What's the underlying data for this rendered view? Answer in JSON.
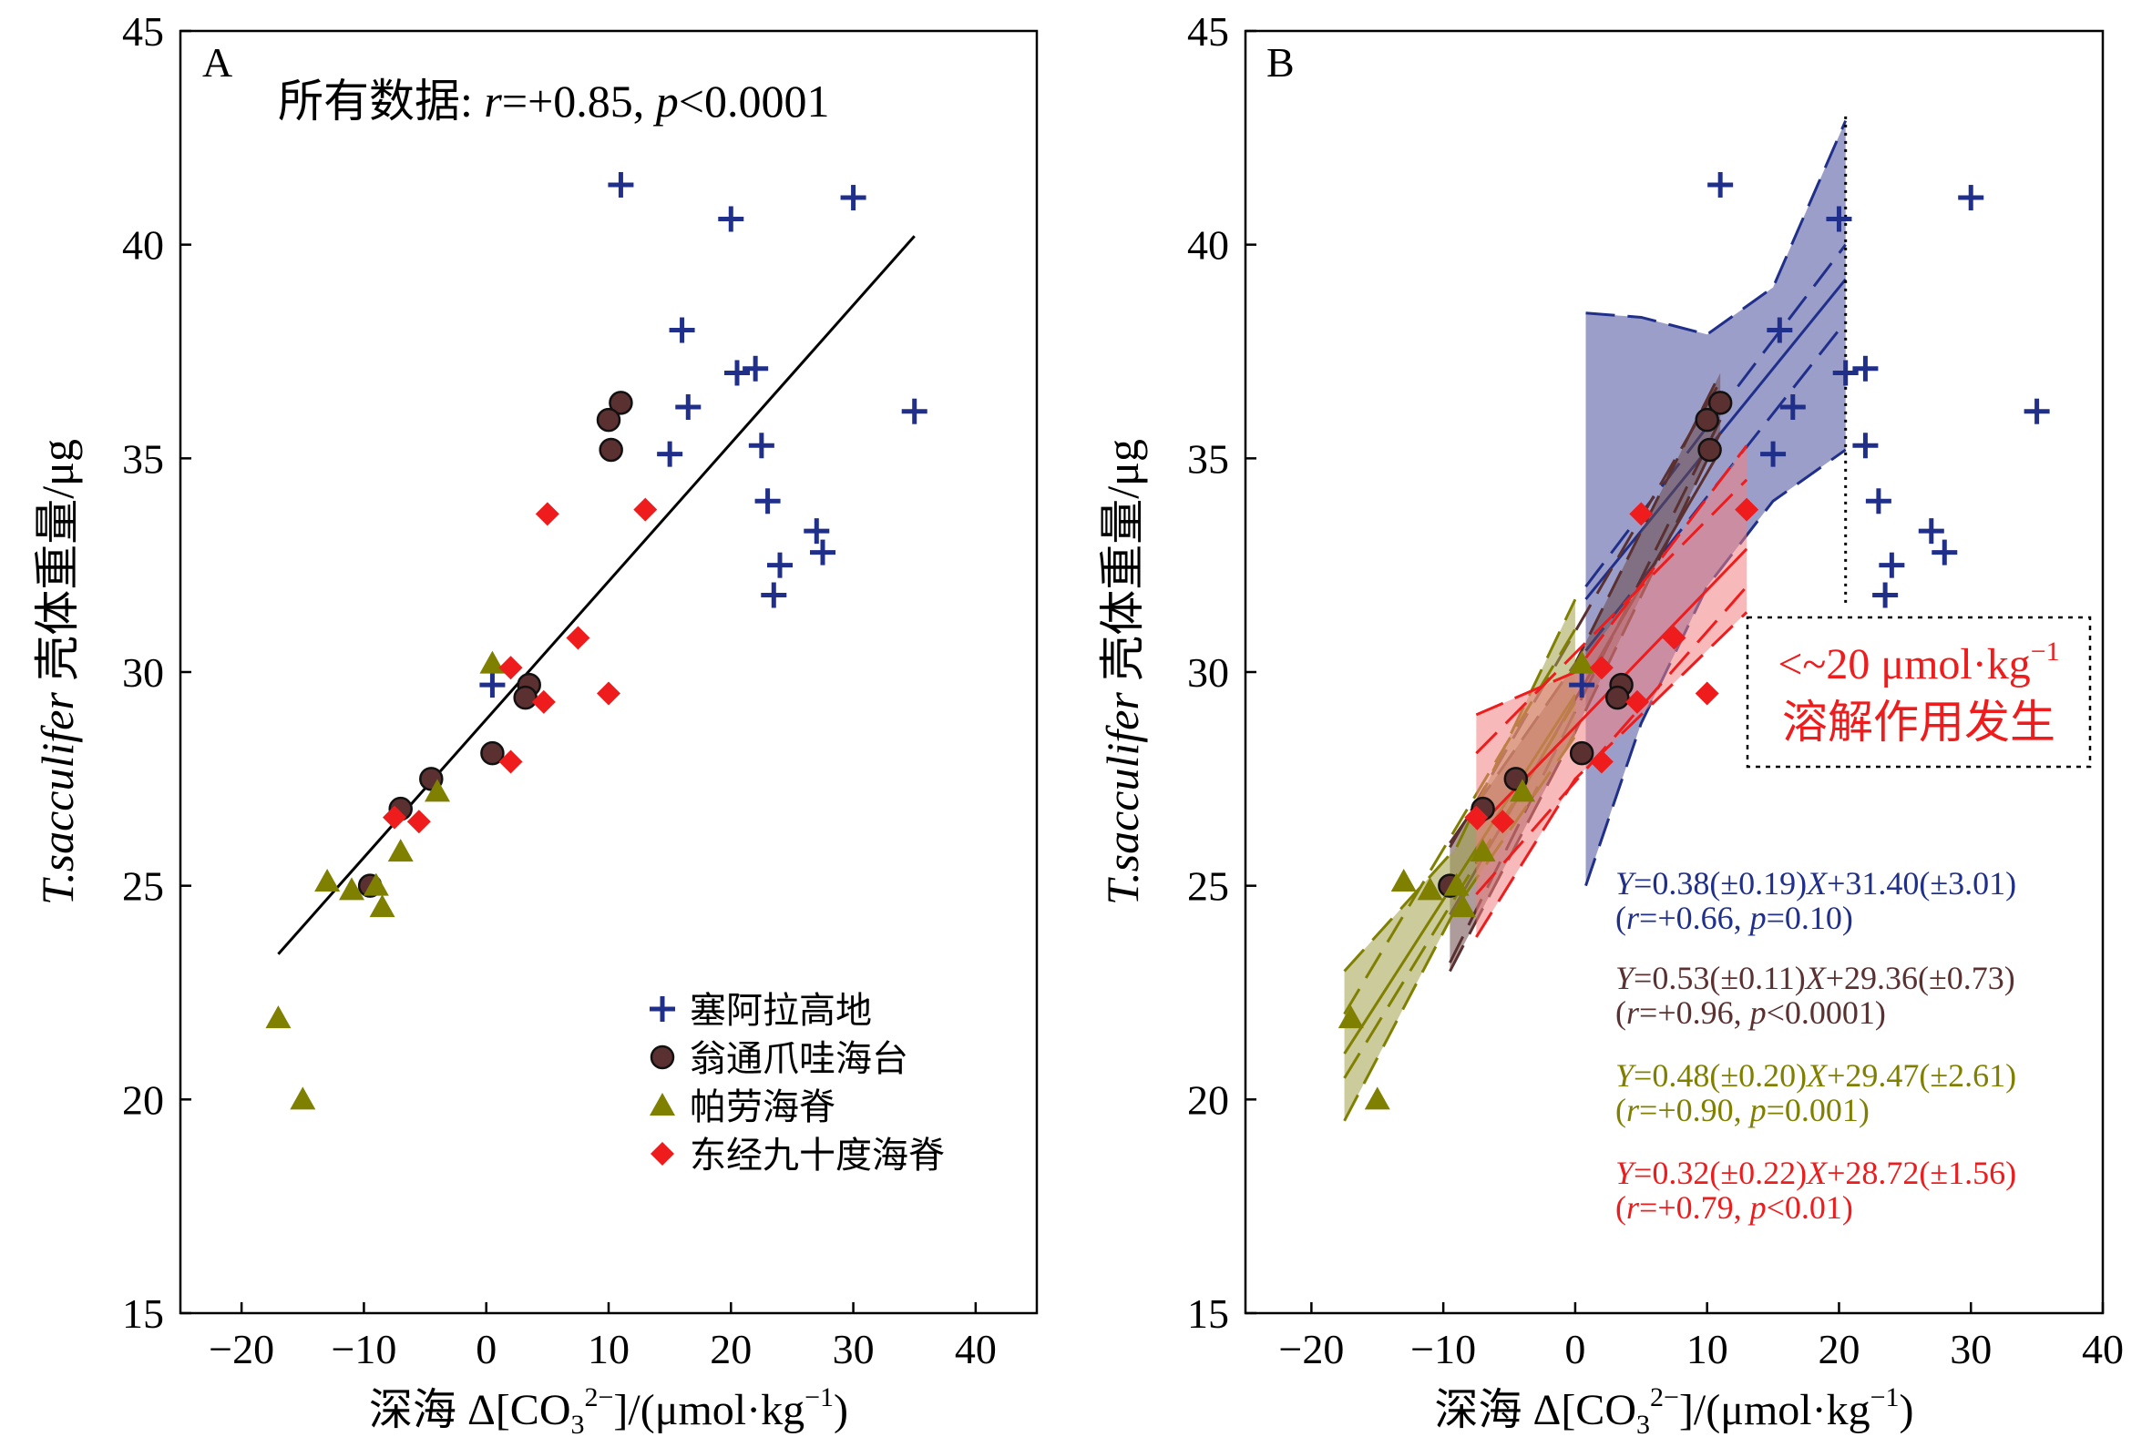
{
  "chart_data": [
    {
      "panel": "A",
      "type": "scatter",
      "annotation": {
        "prefix": "所有数据: ",
        "r_label": "r",
        "r_value": "=+0.85, ",
        "p_label": "p",
        "p_value": "<0.0001"
      },
      "xlabel": {
        "prefix": "深海 Δ[CO",
        "sub": "3",
        "sup": "2−",
        "mid": "]/(μmol·kg",
        "sup2": "−1",
        "suffix": ")"
      },
      "ylabel": {
        "italic": "T.sacculifer",
        "normal": " 壳体重量/μg"
      },
      "xlim": [
        -25,
        45
      ],
      "ylim": [
        15,
        45
      ],
      "xticks": [
        -20,
        -10,
        0,
        10,
        20,
        30,
        40
      ],
      "xtick_labels": [
        "−20",
        "−10",
        "0",
        "10",
        "20",
        "30",
        "40"
      ],
      "yticks": [
        15,
        20,
        25,
        30,
        35,
        40,
        45
      ],
      "ytick_labels": [
        "15",
        "20",
        "25",
        "30",
        "35",
        "40",
        "45"
      ],
      "grid": false,
      "legend_position": "bottom-right",
      "fit_line": {
        "x": [
          -17,
          35
        ],
        "y": [
          23.4,
          40.2
        ]
      },
      "series": [
        {
          "name": "塞阿拉高地",
          "marker": "plus",
          "color": "#1f2f8a",
          "points": [
            [
              11,
              41.4
            ],
            [
              20,
              40.6
            ],
            [
              30,
              41.1
            ],
            [
              16,
              38
            ],
            [
              20.5,
              37
            ],
            [
              22,
              37.1
            ],
            [
              16.5,
              36.2
            ],
            [
              35,
              36.1
            ],
            [
              15,
              35.1
            ],
            [
              22.5,
              35.3
            ],
            [
              23,
              34
            ],
            [
              27,
              33.3
            ],
            [
              27.5,
              32.8
            ],
            [
              24,
              32.5
            ],
            [
              23.5,
              31.8
            ],
            [
              0.5,
              29.7
            ]
          ]
        },
        {
          "name": "翁通爪哇海台",
          "marker": "circle",
          "color": "#5a3030",
          "points": [
            [
              11,
              36.3
            ],
            [
              10,
              35.9
            ],
            [
              10.2,
              35.2
            ],
            [
              3.5,
              29.7
            ],
            [
              3.2,
              29.4
            ],
            [
              0.5,
              28.1
            ],
            [
              -4.5,
              27.5
            ],
            [
              -7,
              26.8
            ],
            [
              -9.5,
              25
            ]
          ]
        },
        {
          "name": "帕劳海脊",
          "marker": "triangle",
          "color": "#7f7f00",
          "points": [
            [
              -17,
              21.9
            ],
            [
              -15,
              20
            ],
            [
              -13,
              25.1
            ],
            [
              -11,
              24.9
            ],
            [
              -9,
              25
            ],
            [
              -8.5,
              24.5
            ],
            [
              -7,
              25.8
            ],
            [
              -4,
              27.2
            ],
            [
              0.5,
              30.2
            ]
          ]
        },
        {
          "name": "东经九十度海脊",
          "marker": "diamond",
          "color": "#ee1c1c",
          "points": [
            [
              5,
              33.7
            ],
            [
              13,
              33.8
            ],
            [
              7.5,
              30.8
            ],
            [
              10,
              29.5
            ],
            [
              4.7,
              29.3
            ],
            [
              2,
              30.1
            ],
            [
              2,
              27.9
            ],
            [
              -7.5,
              26.6
            ],
            [
              -5.5,
              26.5
            ]
          ]
        }
      ]
    },
    {
      "panel": "B",
      "type": "scatter",
      "callout": {
        "line1_prefix": "<~20 μmol·kg",
        "line1_sup": "−1",
        "line2": "溶解作用发生"
      },
      "xlabel": {
        "prefix": "深海 Δ[CO",
        "sub": "3",
        "sup": "2−",
        "mid": "]/(μmol·kg",
        "sup2": "−1",
        "suffix": ")"
      },
      "ylabel": {
        "italic": "T.sacculifer",
        "normal": " 壳体重量/μg"
      },
      "xlim": [
        -25,
        40
      ],
      "ylim": [
        15,
        45
      ],
      "xticks": [
        -20,
        -10,
        0,
        10,
        20,
        30,
        40
      ],
      "xtick_labels": [
        "−20",
        "−10",
        "0",
        "10",
        "20",
        "30",
        "40"
      ],
      "yticks": [
        15,
        20,
        25,
        30,
        35,
        40,
        45
      ],
      "ytick_labels": [
        "15",
        "20",
        "25",
        "30",
        "35",
        "40",
        "45"
      ],
      "grid": false,
      "threshold_x": 20.5,
      "equations": [
        {
          "color": "#1f2f8a",
          "line1": [
            "Y",
            "=0.38(±0.19)",
            "X",
            "+31.40(±3.01)"
          ],
          "line2": [
            "(",
            "r",
            "=+0.66, ",
            "p",
            "=0.10)"
          ]
        },
        {
          "color": "#5a3030",
          "line1": [
            "Y",
            "=0.53(±0.11)",
            "X",
            "+29.36(±0.73)"
          ],
          "line2": [
            "(",
            "r",
            "=+0.96, ",
            "p",
            "<0.0001)"
          ]
        },
        {
          "color": "#7f7f00",
          "line1": [
            "Y",
            "=0.48(±0.20)",
            "X",
            "+29.47(±2.61)"
          ],
          "line2": [
            "(",
            "r",
            "=+0.90, ",
            "p",
            "=0.001)"
          ]
        },
        {
          "color": "#ee1c1c",
          "line1": [
            "Y",
            "=0.32(±0.22)",
            "X",
            "+28.72(±1.56)"
          ],
          "line2": [
            "(",
            "r",
            "=+0.79, ",
            "p",
            "<0.01)"
          ]
        }
      ],
      "fits": [
        {
          "color": "#1f2f8a",
          "fill": "#4a4f9e",
          "x": [
            0.8,
            20.5
          ],
          "slope": 0.38,
          "intercept": 31.4,
          "upper": [
            [
              0.8,
              38.4
            ],
            [
              5,
              38.3
            ],
            [
              10,
              37.9
            ],
            [
              15,
              39.0
            ],
            [
              20.5,
              42.9
            ]
          ],
          "lower": [
            [
              0.8,
              25.0
            ],
            [
              5,
              28.8
            ],
            [
              10,
              32.0
            ],
            [
              15,
              34.0
            ],
            [
              20.5,
              35.2
            ]
          ],
          "band_lines": [
            [
              0.8,
              32.0
            ],
            [
              20.5,
              40.0
            ],
            [
              0.8,
              30.5
            ],
            [
              20.5,
              38.2
            ]
          ]
        },
        {
          "color": "#5a3030",
          "fill": "#6b4a4a",
          "x": [
            -9.5,
            11
          ],
          "slope": 0.53,
          "intercept": 29.36,
          "upper": [
            [
              -9.5,
              26.0
            ],
            [
              0,
              30.2
            ],
            [
              11,
              37.0
            ]
          ],
          "lower": [
            [
              -9.5,
              23.0
            ],
            [
              0,
              28.6
            ],
            [
              11,
              35.6
            ]
          ],
          "band_lines": [
            [
              -9.5,
              25.9
            ],
            [
              11,
              36.8
            ],
            [
              -9.5,
              23.2
            ],
            [
              11,
              35.9
            ]
          ]
        },
        {
          "color": "#7f7f00",
          "fill": "#a3a14a",
          "x": [
            -17.5,
            0
          ],
          "slope": 0.48,
          "intercept": 29.47,
          "upper": [
            [
              -17.5,
              23.0
            ],
            [
              -9,
              25.9
            ],
            [
              0,
              31.7
            ]
          ],
          "lower": [
            [
              -17.5,
              19.5
            ],
            [
              -9,
              24.5
            ],
            [
              0,
              28.5
            ]
          ],
          "band_lines": [
            [
              -17.5,
              22.0
            ],
            [
              0,
              31.0
            ],
            [
              -17.5,
              20.5
            ],
            [
              0,
              29.3
            ]
          ]
        },
        {
          "color": "#ee1c1c",
          "fill": "#f08080",
          "x": [
            -7.5,
            13
          ],
          "slope": 0.32,
          "intercept": 28.72,
          "upper": [
            [
              -7.5,
              29.0
            ],
            [
              0,
              30.0
            ],
            [
              13,
              35.3
            ]
          ],
          "lower": [
            [
              -7.5,
              23.8
            ],
            [
              0,
              27.5
            ],
            [
              13,
              31.4
            ]
          ],
          "band_lines": [
            [
              -7.5,
              28.1
            ],
            [
              13,
              34.5
            ],
            [
              -7.5,
              24.8
            ],
            [
              13,
              32.0
            ]
          ]
        }
      ],
      "series": [
        {
          "name": "塞阿拉高地",
          "marker": "plus",
          "color": "#1f2f8a",
          "points": [
            [
              11,
              41.4
            ],
            [
              20,
              40.6
            ],
            [
              30,
              41.1
            ],
            [
              15.5,
              38
            ],
            [
              20.5,
              37
            ],
            [
              22,
              37.1
            ],
            [
              16.5,
              36.2
            ],
            [
              35,
              36.1
            ],
            [
              15,
              35.1
            ],
            [
              22,
              35.3
            ],
            [
              23,
              34
            ],
            [
              27,
              33.3
            ],
            [
              28,
              32.8
            ],
            [
              24,
              32.5
            ],
            [
              23.5,
              31.8
            ],
            [
              0.5,
              29.7
            ]
          ]
        },
        {
          "name": "翁通爪哇海台",
          "marker": "circle",
          "color": "#5a3030",
          "points": [
            [
              11,
              36.3
            ],
            [
              10,
              35.9
            ],
            [
              10.2,
              35.2
            ],
            [
              3.5,
              29.7
            ],
            [
              3.2,
              29.4
            ],
            [
              0.5,
              28.1
            ],
            [
              -4.5,
              27.5
            ],
            [
              -7,
              26.8
            ],
            [
              -9.5,
              25
            ]
          ]
        },
        {
          "name": "帕劳海脊",
          "marker": "triangle",
          "color": "#7f7f00",
          "points": [
            [
              -17,
              21.9
            ],
            [
              -15,
              20
            ],
            [
              -13,
              25.1
            ],
            [
              -11,
              24.9
            ],
            [
              -9,
              25
            ],
            [
              -8.5,
              24.5
            ],
            [
              -7,
              25.8
            ],
            [
              -4,
              27.2
            ],
            [
              0.5,
              30.2
            ]
          ]
        },
        {
          "name": "东经九十度海脊",
          "marker": "diamond",
          "color": "#ee1c1c",
          "points": [
            [
              5,
              33.7
            ],
            [
              13,
              33.8
            ],
            [
              7.5,
              30.8
            ],
            [
              10,
              29.5
            ],
            [
              4.7,
              29.3
            ],
            [
              2,
              30.1
            ],
            [
              2,
              27.9
            ],
            [
              -7.5,
              26.6
            ],
            [
              -5.5,
              26.5
            ]
          ]
        }
      ]
    }
  ]
}
